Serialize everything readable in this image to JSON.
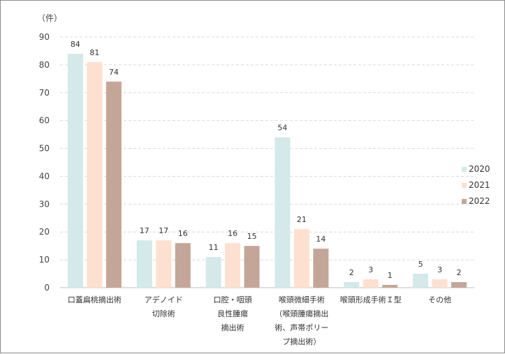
{
  "chart_data": {
    "type": "bar",
    "unit_label": "（件）",
    "categories": [
      [
        "口蓋扁桃摘出術"
      ],
      [
        "アデノイド",
        "切除術"
      ],
      [
        "口腔・咽頭",
        "良性腫瘍",
        "摘出術"
      ],
      [
        "喉頭微細手術",
        "（喉頭腫瘍摘出",
        "術、声帯ポリー",
        "プ摘出術）"
      ],
      [
        "喉頭形成手術Ｉ型"
      ],
      [
        "その他"
      ]
    ],
    "series": [
      {
        "name": "2020",
        "color": "#d3e9ea",
        "values": [
          84,
          17,
          11,
          54,
          2,
          5
        ]
      },
      {
        "name": "2021",
        "color": "#fde0d0",
        "values": [
          81,
          17,
          16,
          21,
          3,
          3
        ]
      },
      {
        "name": "2022",
        "color": "#c4a698",
        "values": [
          74,
          16,
          15,
          14,
          1,
          2
        ]
      }
    ],
    "ylim": [
      0,
      90
    ],
    "yticks": [
      0,
      10,
      20,
      30,
      40,
      50,
      60,
      70,
      80,
      90
    ],
    "grid": true,
    "legend_position": "right"
  }
}
